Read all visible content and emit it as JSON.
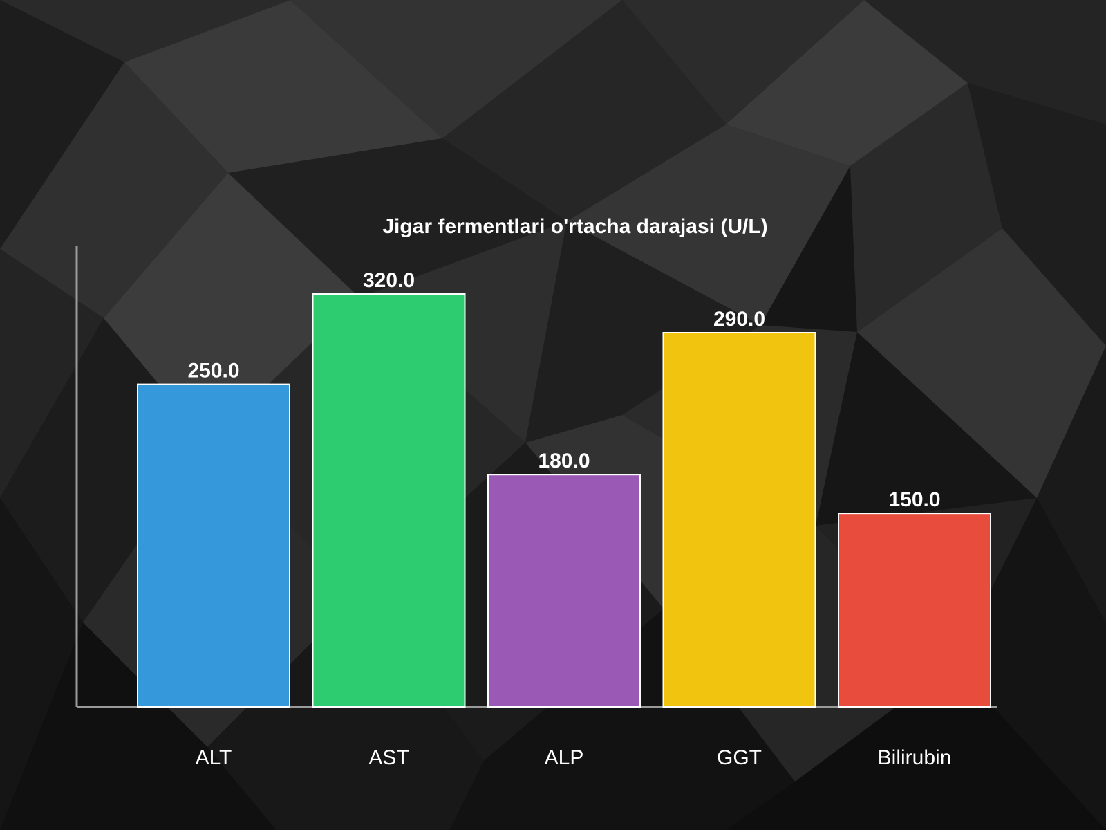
{
  "chart_data": {
    "type": "bar",
    "title": "Jigar fermentlari o'rtacha darajasi (U/L)",
    "categories": [
      "ALT",
      "AST",
      "ALP",
      "GGT",
      "Bilirubin"
    ],
    "values": [
      250.0,
      320.0,
      180.0,
      290.0,
      150.0
    ],
    "value_labels": [
      "250.0",
      "320.0",
      "180.0",
      "290.0",
      "150.0"
    ],
    "colors": [
      "#3498db",
      "#2ecc71",
      "#9b59b6",
      "#f1c40f",
      "#e74c3c"
    ],
    "xlabel": "",
    "ylabel": "",
    "ylim": [
      0,
      357
    ],
    "grid": false,
    "legend": "none",
    "bar_edge_color": "#ffffff",
    "axis_color": "#9a9a9a",
    "background": "dark polygonal pattern"
  }
}
